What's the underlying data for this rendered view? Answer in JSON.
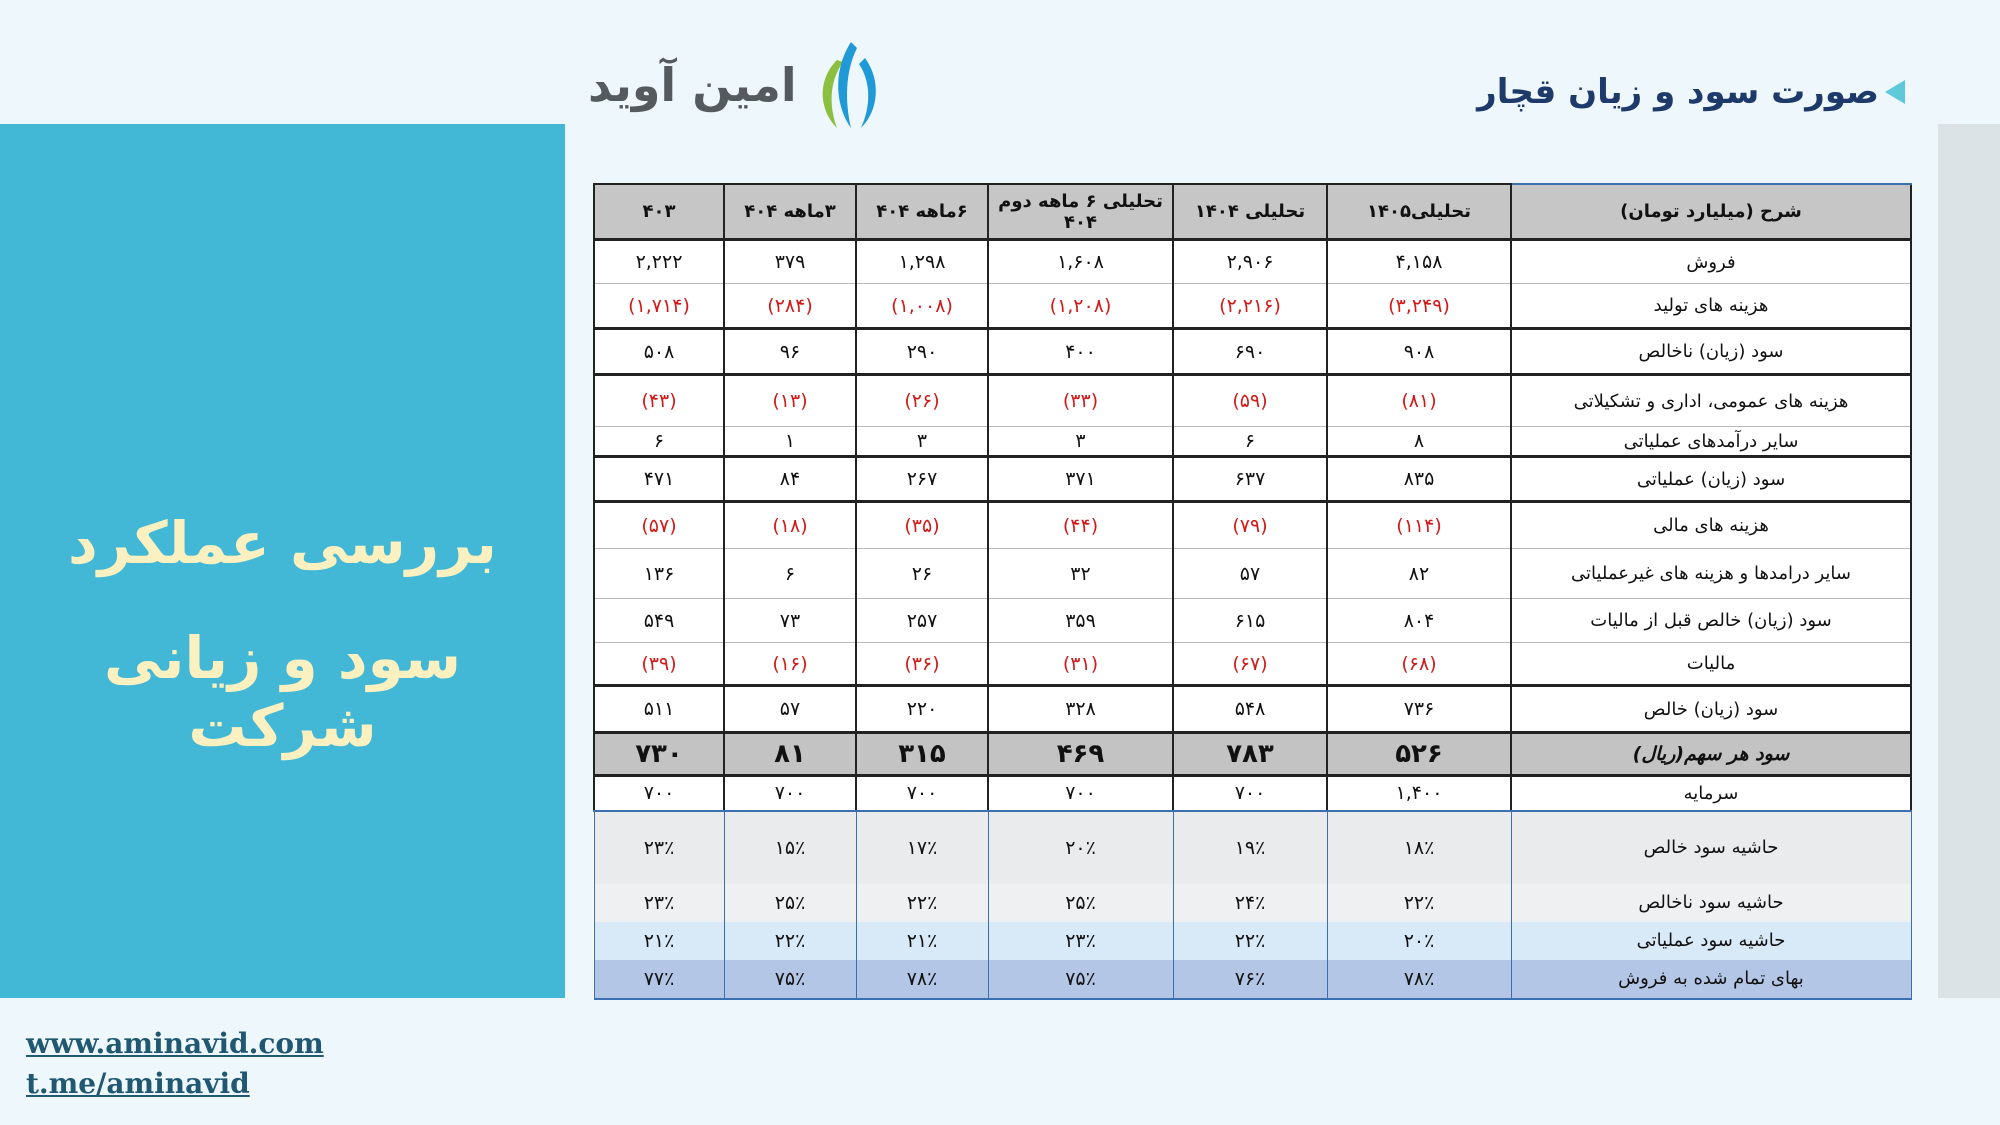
{
  "header": {
    "title": "صورت سود و زیان قچار",
    "logo_text": "امین آوید"
  },
  "side_panel": {
    "line1": "بررسی عملکرد",
    "line2": "سود و زیانی شرکت"
  },
  "links": {
    "website": "www.aminavid.com",
    "telegram": "t.me/aminavid"
  },
  "table": {
    "headers": [
      "شرح (میلیارد تومان)",
      "تحلیلی۱۴۰۵",
      "تحلیلی ۱۴۰۴",
      "تحلیلی ۶ ماهه دوم ۴۰۴",
      "۶ماهه ۴۰۴",
      "۳ماهه ۴۰۴",
      "۴۰۳"
    ],
    "rows": [
      {
        "label": "فروش",
        "values": [
          "۴,۱۵۸",
          "۲,۹۰۶",
          "۱,۶۰۸",
          "۱,۲۹۸",
          "۳۷۹",
          "۲,۲۲۲"
        ],
        "negative": false
      },
      {
        "label": "هزینه های تولید",
        "values": [
          "(۳,۲۴۹)",
          "(۲,۲۱۶)",
          "(۱,۲۰۸)",
          "(۱,۰۰۸)",
          "(۲۸۴)",
          "(۱,۷۱۴)"
        ],
        "negative": true
      },
      {
        "label": "سود (زیان) ناخالص",
        "values": [
          "۹۰۸",
          "۶۹۰",
          "۴۰۰",
          "۲۹۰",
          "۹۶",
          "۵۰۸"
        ],
        "negative": false
      },
      {
        "label": "هزینه های عمومی، اداری و تشکیلاتی",
        "values": [
          "(۸۱)",
          "(۵۹)",
          "(۳۳)",
          "(۲۶)",
          "(۱۳)",
          "(۴۳)"
        ],
        "negative": true
      },
      {
        "label": "سایر درآمدهای عملیاتی",
        "values": [
          "۸",
          "۶",
          "۳",
          "۳",
          "۱",
          "۶"
        ],
        "negative": false
      },
      {
        "label": "سود (زیان) عملیاتی",
        "values": [
          "۸۳۵",
          "۶۳۷",
          "۳۷۱",
          "۲۶۷",
          "۸۴",
          "۴۷۱"
        ],
        "negative": false
      },
      {
        "label": "هزینه های مالی",
        "values": [
          "(۱۱۴)",
          "(۷۹)",
          "(۴۴)",
          "(۳۵)",
          "(۱۸)",
          "(۵۷)"
        ],
        "negative": true
      },
      {
        "label": "سایر درامدها و هزینه های غیرعملیاتی",
        "values": [
          "۸۲",
          "۵۷",
          "۳۲",
          "۲۶",
          "۶",
          "۱۳۶"
        ],
        "negative": false
      },
      {
        "label": "سود (زیان) خالص قبل از مالیات",
        "values": [
          "۸۰۴",
          "۶۱۵",
          "۳۵۹",
          "۲۵۷",
          "۷۳",
          "۵۴۹"
        ],
        "negative": false
      },
      {
        "label": "مالیات",
        "values": [
          "(۶۸)",
          "(۶۷)",
          "(۳۱)",
          "(۳۶)",
          "(۱۶)",
          "(۳۹)"
        ],
        "negative": true
      },
      {
        "label": "سود (زیان) خالص",
        "values": [
          "۷۳۶",
          "۵۴۸",
          "۳۲۸",
          "۲۲۰",
          "۵۷",
          "۵۱۱"
        ],
        "negative": false
      },
      {
        "label": "سود هر سهم(ریال)",
        "values": [
          "۵۲۶",
          "۷۸۳",
          "۴۶۹",
          "۳۱۵",
          "۸۱",
          "۷۳۰"
        ],
        "negative": false
      },
      {
        "label": "سرمایه",
        "values": [
          "۱,۴۰۰",
          "۷۰۰",
          "۷۰۰",
          "۷۰۰",
          "۷۰۰",
          "۷۰۰"
        ],
        "negative": false
      },
      {
        "label": "حاشیه سود خالص",
        "values": [
          "۱۸٪",
          "۱۹٪",
          "۲۰٪",
          "۱۷٪",
          "۱۵٪",
          "۲۳٪"
        ],
        "negative": false
      },
      {
        "label": "حاشیه سود ناخالص",
        "values": [
          "۲۲٪",
          "۲۴٪",
          "۲۵٪",
          "۲۲٪",
          "۲۵٪",
          "۲۳٪"
        ],
        "negative": false
      },
      {
        "label": "حاشیه سود عملیاتی",
        "values": [
          "۲۰٪",
          "۲۲٪",
          "۲۳٪",
          "۲۱٪",
          "۲۲٪",
          "۲۱٪"
        ],
        "negative": false
      },
      {
        "label": "بهای تمام شده به فروش",
        "values": [
          "۷۸٪",
          "۷۶٪",
          "۷۵٪",
          "۷۸٪",
          "۷۵٪",
          "۷۷٪"
        ],
        "negative": false
      }
    ]
  },
  "colors": {
    "panel": "#42b8d6",
    "title": "#1d3a6b",
    "negative": "#d31a1a",
    "panel_text": "#fbf0c0"
  }
}
